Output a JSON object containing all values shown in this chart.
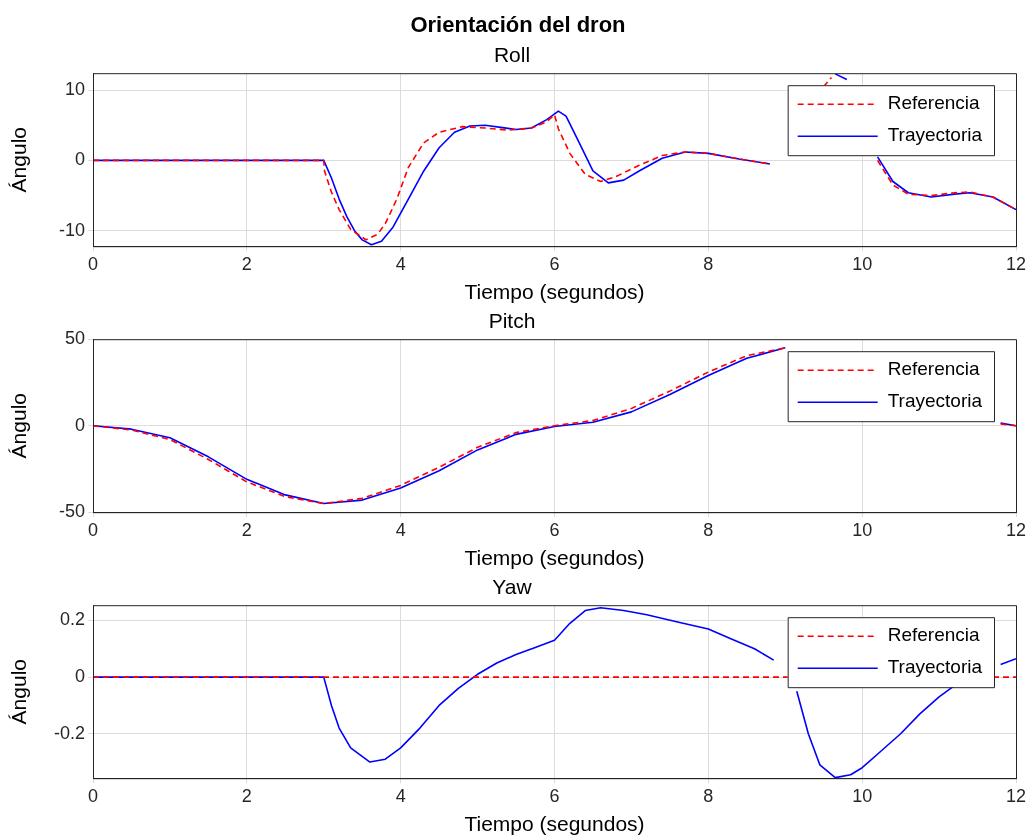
{
  "chart_data": [
    {
      "type": "line",
      "title": "Orientación del dron",
      "subtitle": "Roll",
      "xlabel": "Tiempo (segundos)",
      "ylabel": "Ángulo",
      "xlim": [
        0,
        12
      ],
      "xticks": [
        0,
        2,
        4,
        6,
        8,
        10,
        12
      ],
      "ylim": [
        -12.2,
        12.4
      ],
      "yticks": [
        -10,
        0,
        10
      ],
      "grid": true,
      "legend": "top right",
      "series": [
        {
          "name": "Referencia",
          "color": "#ff0000",
          "line_style": "dashed",
          "x": [
            0,
            3,
            3.01,
            3.1,
            3.2,
            3.35,
            3.55,
            3.7,
            3.8,
            3.95,
            4.1,
            4.3,
            4.5,
            4.8,
            5.1,
            5.4,
            5.7,
            5.9,
            6.0,
            6.05,
            6.2,
            6.4,
            6.6,
            6.8,
            7.1,
            7.4,
            7.7,
            8,
            8.4,
            8.8,
            9.1,
            9.3,
            9.5,
            9.6,
            9.75,
            10,
            10.2,
            10.4,
            10.6,
            10.9,
            11.2,
            11.4,
            11.7,
            12
          ],
          "values": [
            0,
            0,
            -1.5,
            -4.5,
            -7,
            -9.8,
            -11.3,
            -10.5,
            -9,
            -5.5,
            -1,
            2.5,
            4,
            4.8,
            4.6,
            4.3,
            4.6,
            5.5,
            6.5,
            4.5,
            1,
            -2,
            -3,
            -2.3,
            -0.7,
            0.7,
            1.2,
            1,
            0.2,
            -0.5,
            null,
            null,
            10.5,
            11.8,
            null,
            null,
            0,
            -3.5,
            -4.8,
            -5,
            -4.6,
            -4.5,
            -5.2,
            -7
          ]
        },
        {
          "name": "Trayectoria",
          "color": "#0000ff",
          "line_style": "solid",
          "x": [
            0,
            3,
            3.1,
            3.2,
            3.3,
            3.4,
            3.5,
            3.62,
            3.75,
            3.9,
            4.1,
            4.3,
            4.5,
            4.7,
            4.9,
            5.1,
            5.3,
            5.5,
            5.7,
            5.9,
            6.05,
            6.15,
            6.3,
            6.5,
            6.7,
            6.9,
            7.1,
            7.4,
            7.7,
            8,
            8.4,
            8.8,
            9.1,
            9.3,
            9.5,
            9.65,
            9.8,
            10,
            10.2,
            10.4,
            10.6,
            10.9,
            11.2,
            11.4,
            11.7,
            12
          ],
          "values": [
            0,
            0,
            -2.5,
            -5.5,
            -8,
            -10,
            -11.3,
            -12,
            -11.5,
            -9.5,
            -5.5,
            -1.5,
            1.8,
            4,
            4.9,
            5,
            4.7,
            4.4,
            4.6,
            5.8,
            7,
            6.3,
            3,
            -1.5,
            -3.2,
            -2.8,
            -1.5,
            0.3,
            1.2,
            1,
            0.2,
            -0.5,
            null,
            null,
            null,
            12.3,
            11.5,
            null,
            0.5,
            -3,
            -4.6,
            -5.2,
            -4.8,
            -4.6,
            -5.2,
            -7
          ]
        }
      ]
    },
    {
      "type": "line",
      "title": "Pitch",
      "xlabel": "Tiempo (segundos)",
      "ylabel": "Ángulo",
      "xlim": [
        0,
        12
      ],
      "xticks": [
        0,
        2,
        4,
        6,
        8,
        10,
        12
      ],
      "ylim": [
        -50,
        50
      ],
      "yticks": [
        -50,
        0,
        50
      ],
      "grid": true,
      "legend": "top right",
      "series": [
        {
          "name": "Referencia",
          "color": "#ff0000",
          "line_style": "dashed",
          "x": [
            0,
            0.5,
            1,
            1.5,
            2,
            2.5,
            3,
            3.5,
            4,
            4.5,
            5,
            5.5,
            6,
            6.5,
            7,
            7.5,
            8,
            8.5,
            9,
            9.5,
            10,
            10.5,
            11,
            11.8,
            12
          ],
          "values": [
            0,
            -2.5,
            -8,
            -19.5,
            -32.5,
            -41,
            -45,
            -42,
            -34.5,
            -24,
            -12.5,
            -4,
            0,
            3,
            10,
            20,
            31,
            40.5,
            45,
            null,
            null,
            null,
            null,
            1,
            0
          ]
        },
        {
          "name": "Trayectoria",
          "color": "#0000ff",
          "line_style": "solid",
          "x": [
            0,
            0.5,
            1,
            1.5,
            2,
            2.5,
            3,
            3.5,
            4,
            4.5,
            5,
            5.5,
            6,
            6.5,
            7,
            7.5,
            8,
            8.5,
            9,
            9.5,
            10,
            10.5,
            11,
            11.8,
            12
          ],
          "values": [
            0,
            -2,
            -7,
            -18,
            -31,
            -40,
            -45,
            -43,
            -36,
            -26,
            -14,
            -5,
            -0.5,
            2,
            8,
            18,
            29,
            39,
            45,
            null,
            null,
            null,
            null,
            1.5,
            0
          ]
        }
      ]
    },
    {
      "type": "line",
      "title": "Yaw",
      "xlabel": "Tiempo (segundos)",
      "ylabel": "Ángulo",
      "xlim": [
        0,
        12
      ],
      "xticks": [
        0,
        2,
        4,
        6,
        8,
        10,
        12
      ],
      "ylim": [
        -0.357,
        0.254
      ],
      "yticks": [
        -0.2,
        0,
        0.2
      ],
      "grid": true,
      "legend": "top right",
      "series": [
        {
          "name": "Referencia",
          "color": "#ff0000",
          "line_style": "dashed",
          "x": [
            0,
            12
          ],
          "values": [
            0,
            0
          ]
        },
        {
          "name": "Trayectoria",
          "color": "#0000ff",
          "line_style": "solid",
          "x": [
            0,
            3,
            3.1,
            3.2,
            3.35,
            3.6,
            3.8,
            4,
            4.25,
            4.5,
            4.75,
            5,
            5.25,
            5.5,
            5.75,
            6,
            6.1,
            6.2,
            6.4,
            6.6,
            6.9,
            7.2,
            7.6,
            8,
            8.3,
            8.6,
            8.85,
            9.05,
            9.15,
            9.3,
            9.45,
            9.65,
            9.85,
            10,
            10.25,
            10.5,
            10.75,
            11,
            11.2,
            11.4,
            11.8,
            12
          ],
          "values": [
            0,
            0,
            -0.1,
            -0.18,
            -0.25,
            -0.3,
            -0.29,
            -0.25,
            -0.18,
            -0.1,
            -0.04,
            0.01,
            0.05,
            0.08,
            0.105,
            0.13,
            0.16,
            0.19,
            0.235,
            0.245,
            0.235,
            0.22,
            0.195,
            0.17,
            0.135,
            0.1,
            0.06,
            null,
            -0.05,
            -0.2,
            -0.31,
            -0.355,
            -0.345,
            -0.32,
            -0.26,
            -0.2,
            -0.13,
            -0.07,
            -0.03,
            null,
            0.045,
            0.065
          ]
        }
      ]
    }
  ]
}
